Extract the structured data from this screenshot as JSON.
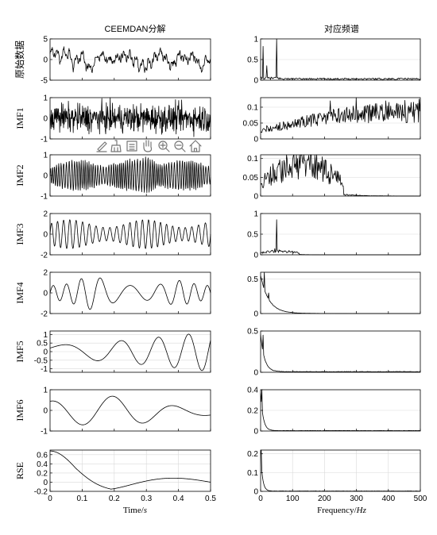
{
  "chart_data": {
    "type": "line",
    "left_column_title": "CEEMDAN分解",
    "right_column_title": "对应频谱",
    "time_xlabel": "Time/s",
    "time_xlabel_plain": "Time/",
    "time_xlabel_unit": "s",
    "freq_xlabel_plain": "Frequency/",
    "freq_xlabel_unit": "Hz",
    "time_xlim": [
      0,
      0.5
    ],
    "time_xticks": [
      0,
      0.1,
      0.2,
      0.3,
      0.4,
      0.5
    ],
    "time_xtick_labels": [
      "0",
      "0.1",
      "0.2",
      "0.3",
      "0.4",
      "0.5"
    ],
    "freq_xlim": [
      0,
      500
    ],
    "freq_xticks": [
      0,
      100,
      200,
      300,
      400,
      500
    ],
    "freq_xtick_labels": [
      "0",
      "100",
      "200",
      "300",
      "400",
      "500"
    ],
    "grid": "horizontal",
    "rows": [
      {
        "ylabel": "原始数据",
        "time": {
          "ylim": [
            -5,
            5
          ],
          "yticks": [
            -5,
            0,
            5
          ],
          "ytick_labels": [
            "-5",
            "0",
            "5"
          ],
          "amplitude": 3.2
        },
        "spectrum": {
          "ylim": [
            0,
            1
          ],
          "yticks": [
            0,
            0.5,
            1
          ],
          "ytick_labels": [
            "0",
            "0.5",
            "1"
          ],
          "peaks": [
            {
              "f": 8,
              "v": 0.82
            },
            {
              "f": 20,
              "v": 0.35
            },
            {
              "f": 50,
              "v": 1.0
            }
          ],
          "floor": 0.04
        }
      },
      {
        "ylabel": "IMF1",
        "time": {
          "ylim": [
            -1,
            1
          ],
          "yticks": [
            -1,
            0,
            1
          ],
          "ytick_labels": [
            "-1",
            "0",
            "1"
          ],
          "amplitude": 1.0
        },
        "spectrum": {
          "ylim": [
            0,
            0.13
          ],
          "yticks": [
            0,
            0.05,
            0.1
          ],
          "ytick_labels": [
            "0",
            "0.05",
            "0.1"
          ],
          "peaks": [
            {
              "f": 218,
              "v": 0.12
            },
            {
              "f": 300,
              "v": 0.13
            },
            {
              "f": 392,
              "v": 0.12
            },
            {
              "f": 430,
              "v": 0.11
            }
          ],
          "floor": 0.05
        }
      },
      {
        "ylabel": "IMF2",
        "time": {
          "ylim": [
            -1,
            1
          ],
          "yticks": [
            -1,
            0,
            1
          ],
          "ytick_labels": [
            "-1",
            "0",
            "1"
          ],
          "amplitude": 0.9
        },
        "spectrum": {
          "ylim": [
            0,
            0.11
          ],
          "yticks": [
            0,
            0.05,
            0.1
          ],
          "ytick_labels": [
            "0",
            "0.05",
            "0.1"
          ],
          "peaks": [
            {
              "f": 115,
              "v": 0.1
            },
            {
              "f": 145,
              "v": 0.095
            },
            {
              "f": 150,
              "v": 0.108
            },
            {
              "f": 180,
              "v": 0.09
            }
          ],
          "floor": 0.04
        }
      },
      {
        "ylabel": "IMF3",
        "time": {
          "ylim": [
            -2,
            2
          ],
          "yticks": [
            -2,
            0,
            2
          ],
          "ytick_labels": [
            "-2",
            "0",
            "2"
          ],
          "amplitude": 1.4
        },
        "spectrum": {
          "ylim": [
            0,
            1
          ],
          "yticks": [
            0,
            0.5,
            1
          ],
          "ytick_labels": [
            "0",
            "0.5",
            "1"
          ],
          "peaks": [
            {
              "f": 50,
              "v": 0.85
            },
            {
              "f": 45,
              "v": 0.15
            }
          ],
          "floor": 0.05
        }
      },
      {
        "ylabel": "IMF4",
        "time": {
          "ylim": [
            -2,
            2
          ],
          "yticks": [
            -2,
            0,
            2
          ],
          "ytick_labels": [
            "-2",
            "0",
            "2"
          ],
          "amplitude": 1.6
        },
        "spectrum": {
          "ylim": [
            0,
            0.6
          ],
          "yticks": [
            0,
            0.5
          ],
          "ytick_labels": [
            "0",
            "0.5"
          ],
          "peaks": [
            {
              "f": 12,
              "v": 0.6
            },
            {
              "f": 25,
              "v": 0.3
            }
          ],
          "floor": 0.02
        }
      },
      {
        "ylabel": "IMF5",
        "time": {
          "ylim": [
            -1.2,
            1.2
          ],
          "yticks": [
            -1,
            -0.5,
            0,
            0.5,
            1
          ],
          "ytick_labels": [
            "-1",
            "-0.5",
            "0",
            "0.5",
            "1"
          ],
          "amplitude": 1.1
        },
        "spectrum": {
          "ylim": [
            0,
            0.5
          ],
          "yticks": [
            0,
            0.5
          ],
          "ytick_labels": [
            "0",
            "0.5"
          ],
          "peaks": [
            {
              "f": 8,
              "v": 0.45
            }
          ],
          "floor": 0.01
        }
      },
      {
        "ylabel": "IMF6",
        "time": {
          "ylim": [
            -1,
            1
          ],
          "yticks": [
            -1,
            0,
            1
          ],
          "ytick_labels": [
            "-1",
            "0",
            "1"
          ],
          "amplitude": 0.7
        },
        "spectrum": {
          "ylim": [
            0,
            0.4
          ],
          "yticks": [
            0,
            0.2,
            0.4
          ],
          "ytick_labels": [
            "0",
            "0.2",
            "0.4"
          ],
          "peaks": [
            {
              "f": 4,
              "v": 0.4
            }
          ],
          "floor": 0.005
        }
      },
      {
        "ylabel": "RSE",
        "time": {
          "ylim": [
            -0.2,
            0.7
          ],
          "yticks": [
            -0.2,
            0,
            0.2,
            0.4,
            0.6
          ],
          "ytick_labels": [
            "-0.2",
            "0",
            "0.2",
            "0.4",
            "0.6"
          ],
          "amplitude": 0.6
        },
        "spectrum": {
          "ylim": [
            0,
            0.22
          ],
          "yticks": [
            0,
            0.1,
            0.2
          ],
          "ytick_labels": [
            "0",
            "0.1",
            "0.2"
          ],
          "peaks": [
            {
              "f": 2,
              "v": 0.22
            }
          ],
          "floor": 0.002
        }
      }
    ]
  },
  "toolbar": {
    "icons": [
      "edit-icon",
      "brush-icon",
      "legend-icon",
      "pan-icon",
      "zoom-in-icon",
      "zoom-out-icon",
      "home-icon"
    ]
  }
}
